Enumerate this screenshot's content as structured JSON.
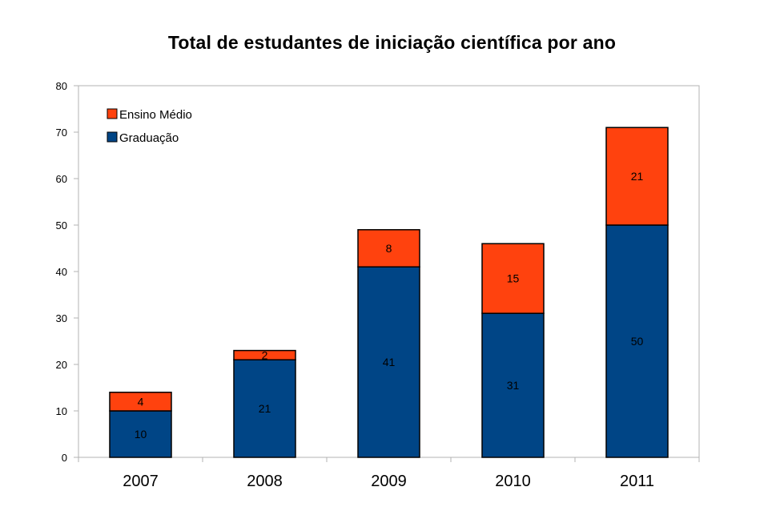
{
  "chart_data": {
    "type": "bar",
    "stacked": true,
    "title": "Total de estudantes de iniciação científica por ano",
    "categories": [
      "2007",
      "2008",
      "2009",
      "2010",
      "2011"
    ],
    "series": [
      {
        "name": "Graduação",
        "values": [
          10,
          21,
          41,
          31,
          50
        ],
        "color": "#004586"
      },
      {
        "name": "Ensino Médio",
        "values": [
          4,
          2,
          8,
          15,
          21
        ],
        "color": "#ff420e"
      }
    ],
    "ylim": [
      0,
      80
    ],
    "yticks": [
      0,
      10,
      20,
      30,
      40,
      50,
      60,
      70,
      80
    ],
    "xlabel": "",
    "ylabel": "",
    "grid": false,
    "legend_position": "top-left"
  }
}
